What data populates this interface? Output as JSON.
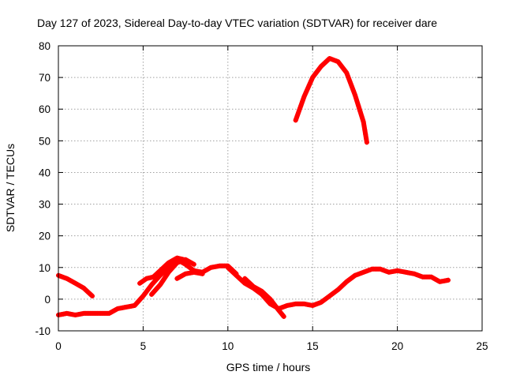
{
  "chart_data": {
    "type": "scatter",
    "title": "Day 127 of 2023, Sidereal Day-to-day VTEC variation (SDTVAR) for receiver dare",
    "xlabel": "GPS time / hours",
    "ylabel": "SDTVAR / TECUs",
    "xlim": [
      0,
      25
    ],
    "ylim": [
      -10,
      80
    ],
    "xticks": [
      0,
      5,
      10,
      15,
      20,
      25
    ],
    "yticks": [
      -10,
      0,
      10,
      20,
      30,
      40,
      50,
      60,
      70,
      80
    ],
    "xtick_labels": [
      "0",
      "5",
      "10",
      "15",
      "20",
      "25"
    ],
    "ytick_labels": [
      "-10",
      "0",
      "10",
      "20",
      "30",
      "40",
      "50",
      "60",
      "70",
      "80"
    ],
    "grid": true,
    "marker": "+",
    "colors": {
      "series": "#ff0000",
      "grid": "#a0a0a0",
      "axis": "#000000"
    },
    "series": [
      {
        "name": "track-1",
        "x": [
          0,
          0.5,
          1,
          1.5,
          2
        ],
        "y": [
          7.5,
          6.5,
          5,
          3.5,
          1
        ]
      },
      {
        "name": "track-2",
        "x": [
          0,
          0.5,
          1,
          1.5,
          2,
          2.5,
          3,
          3.5,
          4,
          4.5,
          5,
          5.5,
          6,
          6.5,
          7,
          7.5,
          8,
          8.5,
          9,
          9.5,
          10,
          10.5
        ],
        "y": [
          -5,
          -4.5,
          -5,
          -4.5,
          -4.5,
          -4.5,
          -4.5,
          -3,
          -2.5,
          -2,
          1,
          4.5,
          7.5,
          10,
          12.5,
          11,
          9,
          8.5,
          10,
          10.5,
          10.5,
          8
        ]
      },
      {
        "name": "track-3",
        "x": [
          4.8,
          5.2,
          5.6,
          6,
          6.5,
          7,
          7.4
        ],
        "y": [
          5,
          6.5,
          7,
          9,
          11.5,
          13,
          12.5
        ]
      },
      {
        "name": "track-4",
        "x": [
          5.5,
          6,
          6.5,
          7,
          7.5,
          8
        ],
        "y": [
          1.5,
          4.5,
          8.5,
          11.5,
          12.5,
          11
        ]
      },
      {
        "name": "track-5",
        "x": [
          7,
          7.5,
          8,
          8.5
        ],
        "y": [
          6.5,
          8,
          8.5,
          8
        ]
      },
      {
        "name": "track-6",
        "x": [
          10,
          10.5,
          11,
          11.5,
          12,
          12.5,
          13,
          13.5,
          14,
          14.5,
          15,
          15.5,
          16,
          16.5,
          17,
          17.5,
          18,
          18.5,
          19,
          19.5,
          20,
          20.5,
          21,
          21.5,
          22,
          22.5,
          23
        ],
        "y": [
          10,
          7.5,
          5,
          3.5,
          1.5,
          -1.5,
          -3,
          -2,
          -1.5,
          -1.5,
          -2,
          -1,
          1,
          3,
          5.5,
          7.5,
          8.5,
          9.5,
          9.5,
          8.5,
          9,
          8.5,
          8,
          7,
          7,
          5.5,
          6
        ]
      },
      {
        "name": "track-7",
        "x": [
          11,
          11.5,
          12,
          12.5,
          13,
          13.3
        ],
        "y": [
          6.5,
          4,
          2.5,
          0,
          -3.5,
          -5.5
        ]
      },
      {
        "name": "track-8",
        "x": [
          14,
          14.5,
          15,
          15.5,
          16,
          16.5,
          17,
          17.5,
          18,
          18.2
        ],
        "y": [
          56.5,
          64,
          70,
          73.5,
          76,
          75,
          71.5,
          64.5,
          56,
          49.5
        ]
      }
    ]
  }
}
